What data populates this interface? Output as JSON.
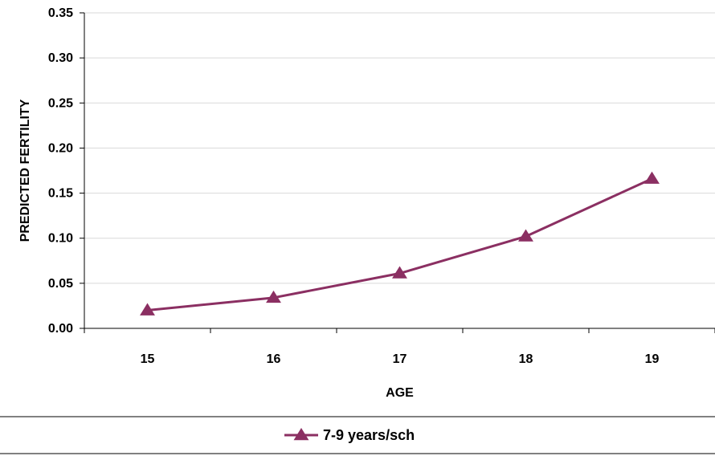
{
  "chart_data": {
    "type": "line",
    "title": "",
    "xlabel": "AGE",
    "ylabel": "PREDICTED FERTILITY",
    "categories": [
      "15",
      "16",
      "17",
      "18",
      "19"
    ],
    "ylim": [
      0,
      0.35
    ],
    "yticks": [
      "0.00",
      "0.05",
      "0.10",
      "0.15",
      "0.20",
      "0.25",
      "0.30",
      "0.35"
    ],
    "grid": true,
    "legend_position": "bottom",
    "series": [
      {
        "name": "7-9 years/sch",
        "values": [
          0.02,
          0.034,
          0.061,
          0.102,
          0.166
        ],
        "color": "#8B2F62",
        "marker": "triangle"
      }
    ]
  }
}
